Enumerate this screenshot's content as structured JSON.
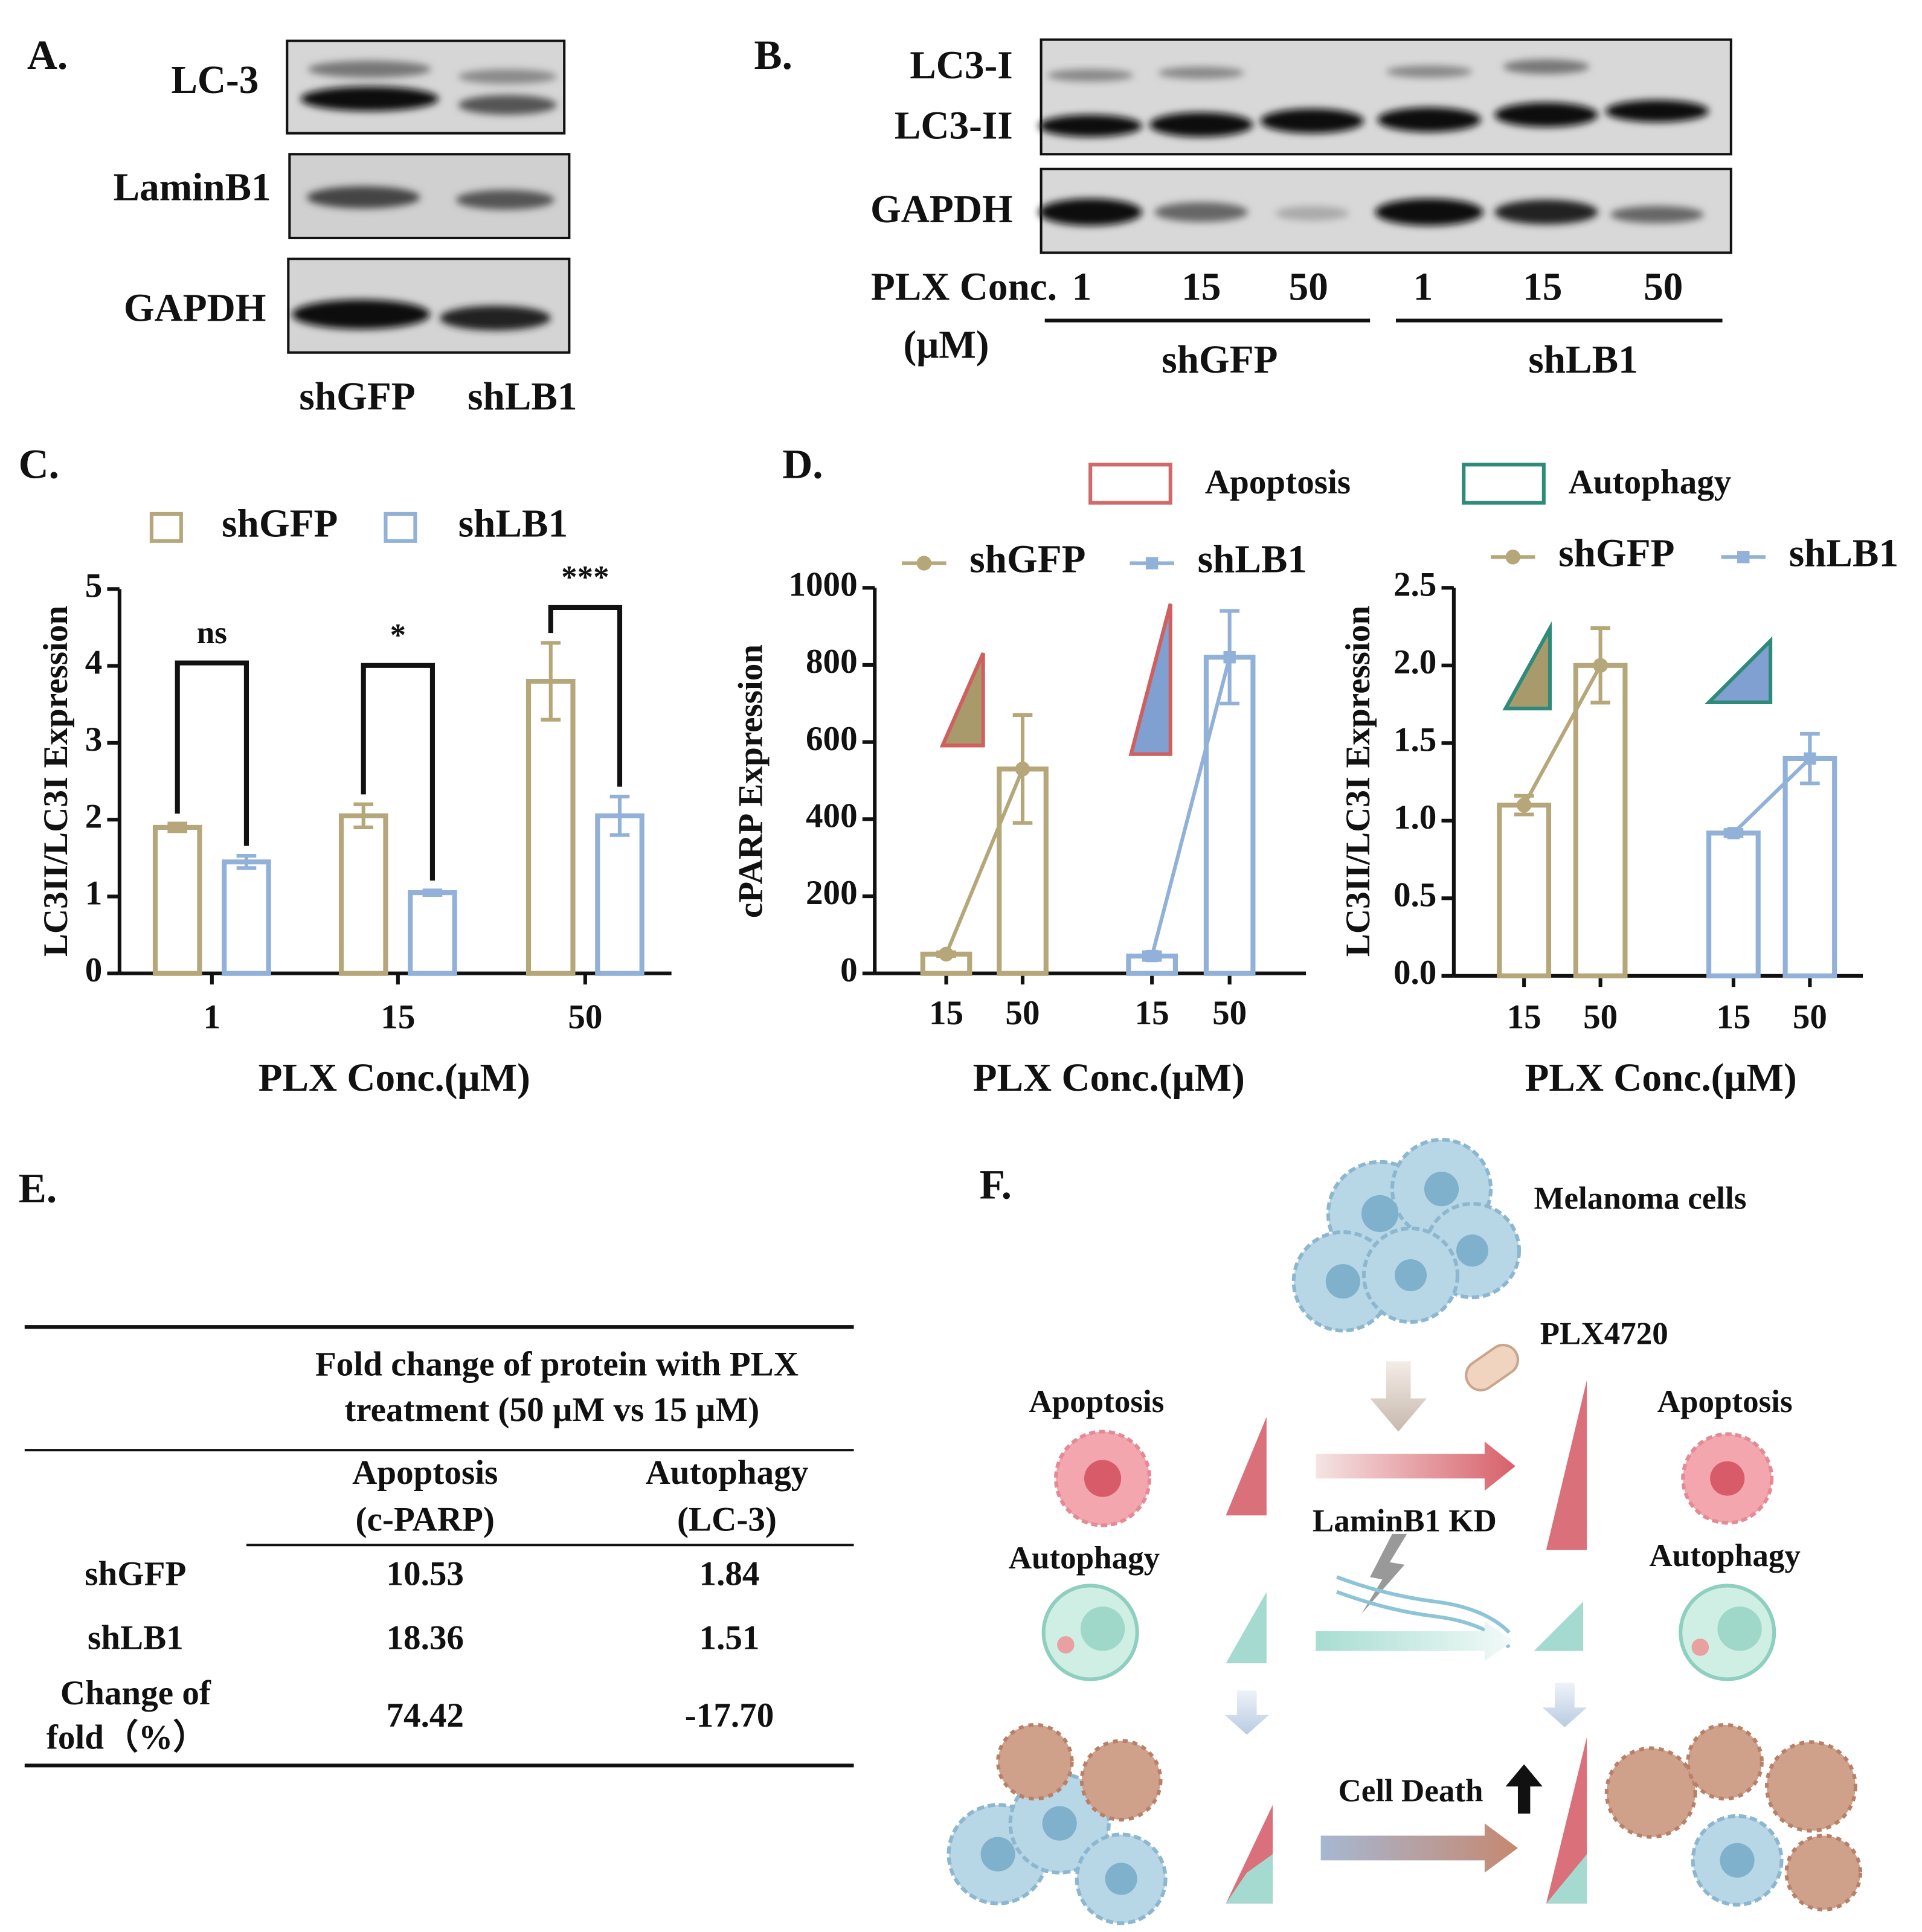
{
  "panels": {
    "a": "A.",
    "b": "B.",
    "c": "C.",
    "d": "D.",
    "e": "E.",
    "f": "F."
  },
  "blot_a": {
    "bands": [
      "LC-3",
      "LaminB1",
      "GAPDH"
    ],
    "lanes": [
      "shGFP",
      "shLB1"
    ]
  },
  "blot_b": {
    "bands": [
      "LC3-I",
      "LC3-II",
      "GAPDH"
    ],
    "conc_label": "PLX Conc.",
    "unit_label": "(μM)",
    "concs": [
      "1",
      "15",
      "50",
      "1",
      "15",
      "50"
    ],
    "groups": [
      "shGFP",
      "shLB1"
    ]
  },
  "chart_data": [
    {
      "type": "bar",
      "y_label": "LC3II/LC3I Expression",
      "x_label": "PLX Conc.(μM)",
      "categories": [
        "1",
        "15",
        "50"
      ],
      "series": [
        {
          "name": "shGFP",
          "color": "#b5a77a",
          "values": [
            1.9,
            2.05,
            3.8
          ],
          "errors": [
            0.05,
            0.15,
            0.5
          ]
        },
        {
          "name": "shLB1",
          "color": "#92b1d8",
          "values": [
            1.45,
            1.05,
            2.05
          ],
          "errors": [
            0.08,
            0.03,
            0.25
          ]
        }
      ],
      "significance": [
        "ns",
        "*",
        "***"
      ],
      "ylim": [
        0,
        5
      ],
      "yticks": [
        0,
        1,
        2,
        3,
        4,
        5
      ]
    },
    {
      "type": "bar_line",
      "y_label": "cPARP Expression",
      "x_label": "PLX Conc.(μM)",
      "categories": [
        "15",
        "50",
        "15",
        "50"
      ],
      "series": [
        {
          "name": "shGFP",
          "color": "#b5a77a",
          "marker": "circle",
          "values": [
            50,
            530,
            null,
            null
          ],
          "errors": [
            5,
            140,
            null,
            null
          ]
        },
        {
          "name": "shLB1",
          "color": "#92b1d8",
          "marker": "square",
          "values": [
            null,
            null,
            45,
            820
          ],
          "errors": [
            null,
            null,
            10,
            120
          ]
        }
      ],
      "ylim": [
        0,
        1000
      ],
      "yticks": [
        0,
        200,
        400,
        600,
        800,
        1000
      ]
    },
    {
      "type": "bar_line",
      "y_label": "LC3II/LC3I Expression",
      "x_label": "PLX Conc.(μM)",
      "categories": [
        "15",
        "50",
        "15",
        "50"
      ],
      "series": [
        {
          "name": "shGFP",
          "color": "#b5a77a",
          "marker": "circle",
          "values": [
            1.1,
            2.0,
            null,
            null
          ],
          "errors": [
            0.06,
            0.24,
            null,
            null
          ]
        },
        {
          "name": "shLB1",
          "color": "#92b1d8",
          "marker": "square",
          "values": [
            null,
            null,
            0.92,
            1.4
          ],
          "errors": [
            null,
            null,
            0.02,
            0.16
          ]
        }
      ],
      "ylim": [
        0,
        2.5
      ],
      "yticks": [
        {
          "value": 0,
          "label": "0.0"
        },
        0.5,
        {
          "value": 1,
          "label": "1.0"
        },
        1.5,
        {
          "value": 2,
          "label": "2.0"
        },
        2.5
      ]
    }
  ],
  "d_legend": {
    "apoptosis": "Apoptosis",
    "autophagy": "Autophagy"
  },
  "table": {
    "title": [
      "Fold change of protein with PLX",
      "treatment (50 μM vs 15 μM)"
    ],
    "columns": [
      [
        "Apoptosis",
        "(c-PARP)"
      ],
      [
        "Autophagy",
        "(LC-3)"
      ]
    ],
    "rows": [
      {
        "label": [
          "shGFP"
        ],
        "cells": [
          "10.53",
          "1.84"
        ]
      },
      {
        "label": [
          "shLB1"
        ],
        "cells": [
          "18.36",
          "1.51"
        ]
      },
      {
        "label": [
          "Change of",
          "fold（%）"
        ],
        "cells": [
          "74.42",
          "-17.70"
        ]
      }
    ]
  },
  "diagram": {
    "melanoma": "Melanoma cells",
    "drug": "PLX4720",
    "apoptosis_left": "Apoptosis",
    "autophagy_left": "Autophagy",
    "knockdown": "LaminB1 KD",
    "apoptosis_right": "Apoptosis",
    "autophagy_right": "Autophagy",
    "cell_death": "Cell Death"
  }
}
